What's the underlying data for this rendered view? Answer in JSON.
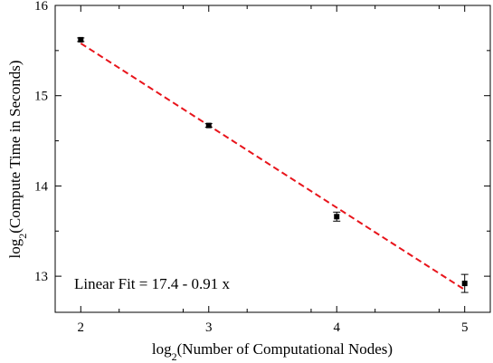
{
  "chart_data": {
    "type": "scatter",
    "xlabel": "log",
    "xlabel_sub": "2",
    "xlabel_rest": "(Number of Computational Nodes)",
    "ylabel": "log",
    "ylabel_sub": "2",
    "ylabel_rest": "(Compute Time in Seconds)",
    "xlim": [
      1.8,
      5.2
    ],
    "ylim": [
      12.6,
      16.0
    ],
    "xticks": [
      2,
      3,
      4,
      5
    ],
    "yticks": [
      13,
      14,
      15,
      16
    ],
    "grid": false,
    "series": [
      {
        "points": [
          {
            "x": 2,
            "y": 15.62,
            "err": 0.02
          },
          {
            "x": 3,
            "y": 14.67,
            "err": 0.02
          },
          {
            "x": 4,
            "y": 13.66,
            "err": 0.05
          },
          {
            "x": 5,
            "y": 12.92,
            "err": 0.1
          }
        ]
      }
    ],
    "fit": {
      "intercept": 17.4,
      "slope": -0.91,
      "color": "#e8141b",
      "style": "dashed",
      "x_range": [
        2,
        5
      ]
    },
    "annotation": "Linear Fit = 17.4 - 0.91 x",
    "marker_color": "#000000"
  }
}
